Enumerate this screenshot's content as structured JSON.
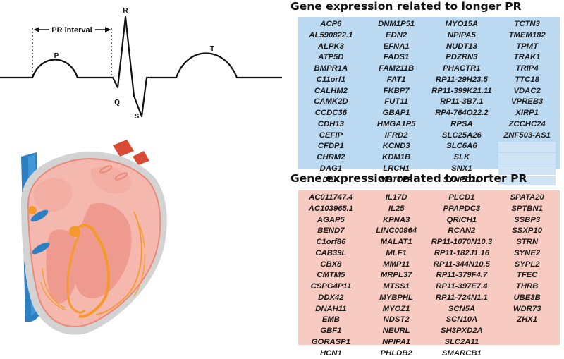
{
  "ecg": {
    "pr_interval_label": "PR interval",
    "wave_labels": {
      "p": "P",
      "q": "Q",
      "r": "R",
      "s": "S",
      "t": "T"
    }
  },
  "longer": {
    "title": "Gene expression related to longer PR",
    "color": "#bcd9f2",
    "columns": [
      [
        "ACP6",
        "AL590822.1",
        "ALPK3",
        "ATP5D",
        "BMPR1A",
        "C11orf1",
        "CALHM2",
        "CAMK2D",
        "CCDC36",
        "CDH13",
        "CEFIP",
        "CFDP1",
        "CHRM2",
        "DAG1",
        "DEK"
      ],
      [
        "DNM1P51",
        "EDN2",
        "EFNA1",
        "FADS1",
        "FAM211B",
        "FAT1",
        "FKBP7",
        "FUT11",
        "GBAP1",
        "HMGA1P5",
        "IFRD2",
        "KCND3",
        "KDM1B",
        "LRCH1",
        "MSTO2P"
      ],
      [
        "MYO15A",
        "NPIPA5",
        "NUDT13",
        "PDZRN3",
        "PHACTR1",
        "RP11-29H23.5",
        "RP11-399K21.11",
        "RP11-3B7.1",
        "RP4-764O22.2",
        "RPSA",
        "SLC25A26",
        "SLC6A6",
        "SLK",
        "SNX1",
        "SYNPO2L"
      ],
      [
        "TCTN3",
        "TMEM182",
        "TPMT",
        "TRAK1",
        "TRIP4",
        "TTC18",
        "VDAC2",
        "VPREB3",
        "XIRP1",
        "ZCCHC24",
        "ZNF503-AS1"
      ]
    ]
  },
  "shorter": {
    "title": "Gene expression related to shorter PR",
    "color": "#f7cbc1",
    "columns": [
      [
        "AC011747.4",
        "AC103965.1",
        "AGAP5",
        "BEND7",
        "C1orf86",
        "CAB39L",
        "CBX8",
        "CMTM5",
        "CSPG4P11",
        "DDX42",
        "DNAH11",
        "EMB",
        "GBF1",
        "GORASP1",
        "HCN1"
      ],
      [
        "IL17D",
        "IL25",
        "KPNA3",
        "LINC00964",
        "MALAT1",
        "MLF1",
        "MMP11",
        "MRPL37",
        "MTSS1",
        "MYBPHL",
        "MYOZ1",
        "NDST2",
        "NEURL",
        "NPIPA1",
        "PHLDB2"
      ],
      [
        "PLCD1",
        "PPAPDC3",
        "QRICH1",
        "RCAN2",
        "RP11-1070N10.3",
        "RP11-182J1.16",
        "RP11-344N10.5",
        "RP11-379F4.7",
        "RP11-397E7.4",
        "RP11-724N1.1",
        "SCN5A",
        "SCN10A",
        "SH3PXD2A",
        "SLC2A11",
        "SMARCB1"
      ],
      [
        "SPATA20",
        "SPTBN1",
        "SSBP3",
        "SSXP10",
        "STRN",
        "SYNE2",
        "SYPL2",
        "TFEC",
        "THRB",
        "UBE3B",
        "WDR73",
        "ZHX1"
      ]
    ]
  }
}
